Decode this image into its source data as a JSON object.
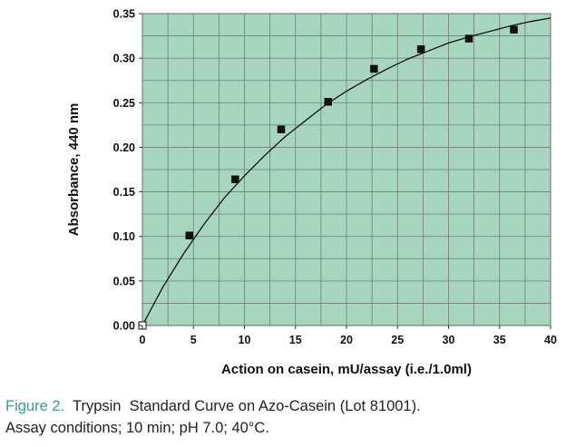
{
  "chart_data": {
    "type": "scatter",
    "xlabel": "Action on casein, mU/assay (i.e./1.0ml)",
    "ylabel": "Absorbance, 440 nm",
    "xlim": [
      0,
      40
    ],
    "ylim": [
      0,
      0.35
    ],
    "x_ticks": [
      "0",
      "5",
      "10",
      "15",
      "20",
      "25",
      "30",
      "35",
      "40"
    ],
    "y_ticks": [
      "0.00",
      "0.05",
      "0.10",
      "0.15",
      "0.20",
      "0.25",
      "0.30",
      "0.35"
    ],
    "grid": true,
    "plot_background": "#a8d5c0",
    "gridline_color": "#6f7f78",
    "marker_color": "#111111",
    "series": [
      {
        "marker": "square",
        "x": [
          0,
          4.6,
          9.1,
          13.6,
          18.2,
          22.7,
          27.3,
          32.0,
          36.4
        ],
        "y": [
          0.0,
          0.101,
          0.164,
          0.22,
          0.251,
          0.288,
          0.31,
          0.322,
          0.332
        ]
      }
    ],
    "fit_curve": {
      "x": [
        0,
        2,
        4,
        6,
        8,
        10,
        12,
        14,
        16,
        18,
        20,
        22,
        24,
        26,
        28,
        30,
        32,
        34,
        36,
        38,
        40
      ],
      "y": [
        0.0,
        0.043,
        0.08,
        0.113,
        0.143,
        0.168,
        0.191,
        0.212,
        0.23,
        0.248,
        0.263,
        0.276,
        0.288,
        0.299,
        0.308,
        0.317,
        0.324,
        0.33,
        0.336,
        0.341,
        0.345
      ]
    }
  },
  "caption": {
    "figure_label": "Figure 2.",
    "title": "Trypsin  Standard Curve on Azo-Casein (Lot 81001).",
    "conditions": "Assay conditions; 10 min; pH 7.0; 40°C."
  }
}
